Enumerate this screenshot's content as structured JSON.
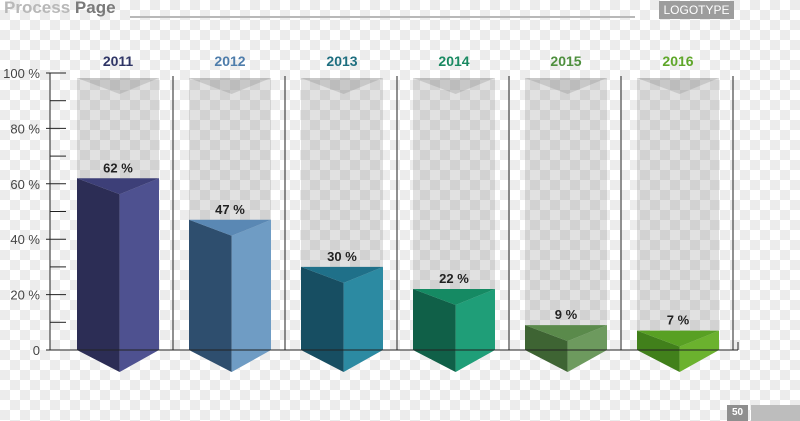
{
  "header": {
    "title_part1": "Process",
    "title_part2": "Page",
    "logotype": "LOGOTYPE"
  },
  "footer": {
    "page_number": "50"
  },
  "chart_data": {
    "type": "bar",
    "categories": [
      "2011",
      "2012",
      "2013",
      "2014",
      "2015",
      "2016"
    ],
    "values": [
      62,
      47,
      30,
      22,
      9,
      7
    ],
    "data_labels": [
      "62 %",
      "47 %",
      "30 %",
      "22 %",
      "9 %",
      "7 %"
    ],
    "y_ticks": [
      {
        "value": 100,
        "label": "100 %"
      },
      {
        "value": 80,
        "label": "80 %"
      },
      {
        "value": 60,
        "label": "60 %"
      },
      {
        "value": 40,
        "label": "40 %"
      },
      {
        "value": 20,
        "label": "20 %"
      },
      {
        "value": 0,
        "label": "0"
      }
    ],
    "ylim": [
      0,
      100
    ],
    "title": "",
    "xlabel": "",
    "ylabel": "",
    "colors": {
      "year_labels": [
        "#2f3566",
        "#4e7dab",
        "#1f6f80",
        "#1a8a62",
        "#4e8f3e",
        "#5fa72a"
      ],
      "bar_front": [
        "#4e5190",
        "#6f9cc4",
        "#2c8aa2",
        "#1f9e78",
        "#6d9a5e",
        "#6bb22e"
      ],
      "bar_side": [
        "#2c2d55",
        "#2e4e6e",
        "#174e62",
        "#106048",
        "#3e6433",
        "#41801b"
      ],
      "bar_top": [
        "#3d3f78",
        "#5a88b4",
        "#1f7089",
        "#158a63",
        "#5a8a4b",
        "#58a023"
      ]
    }
  }
}
